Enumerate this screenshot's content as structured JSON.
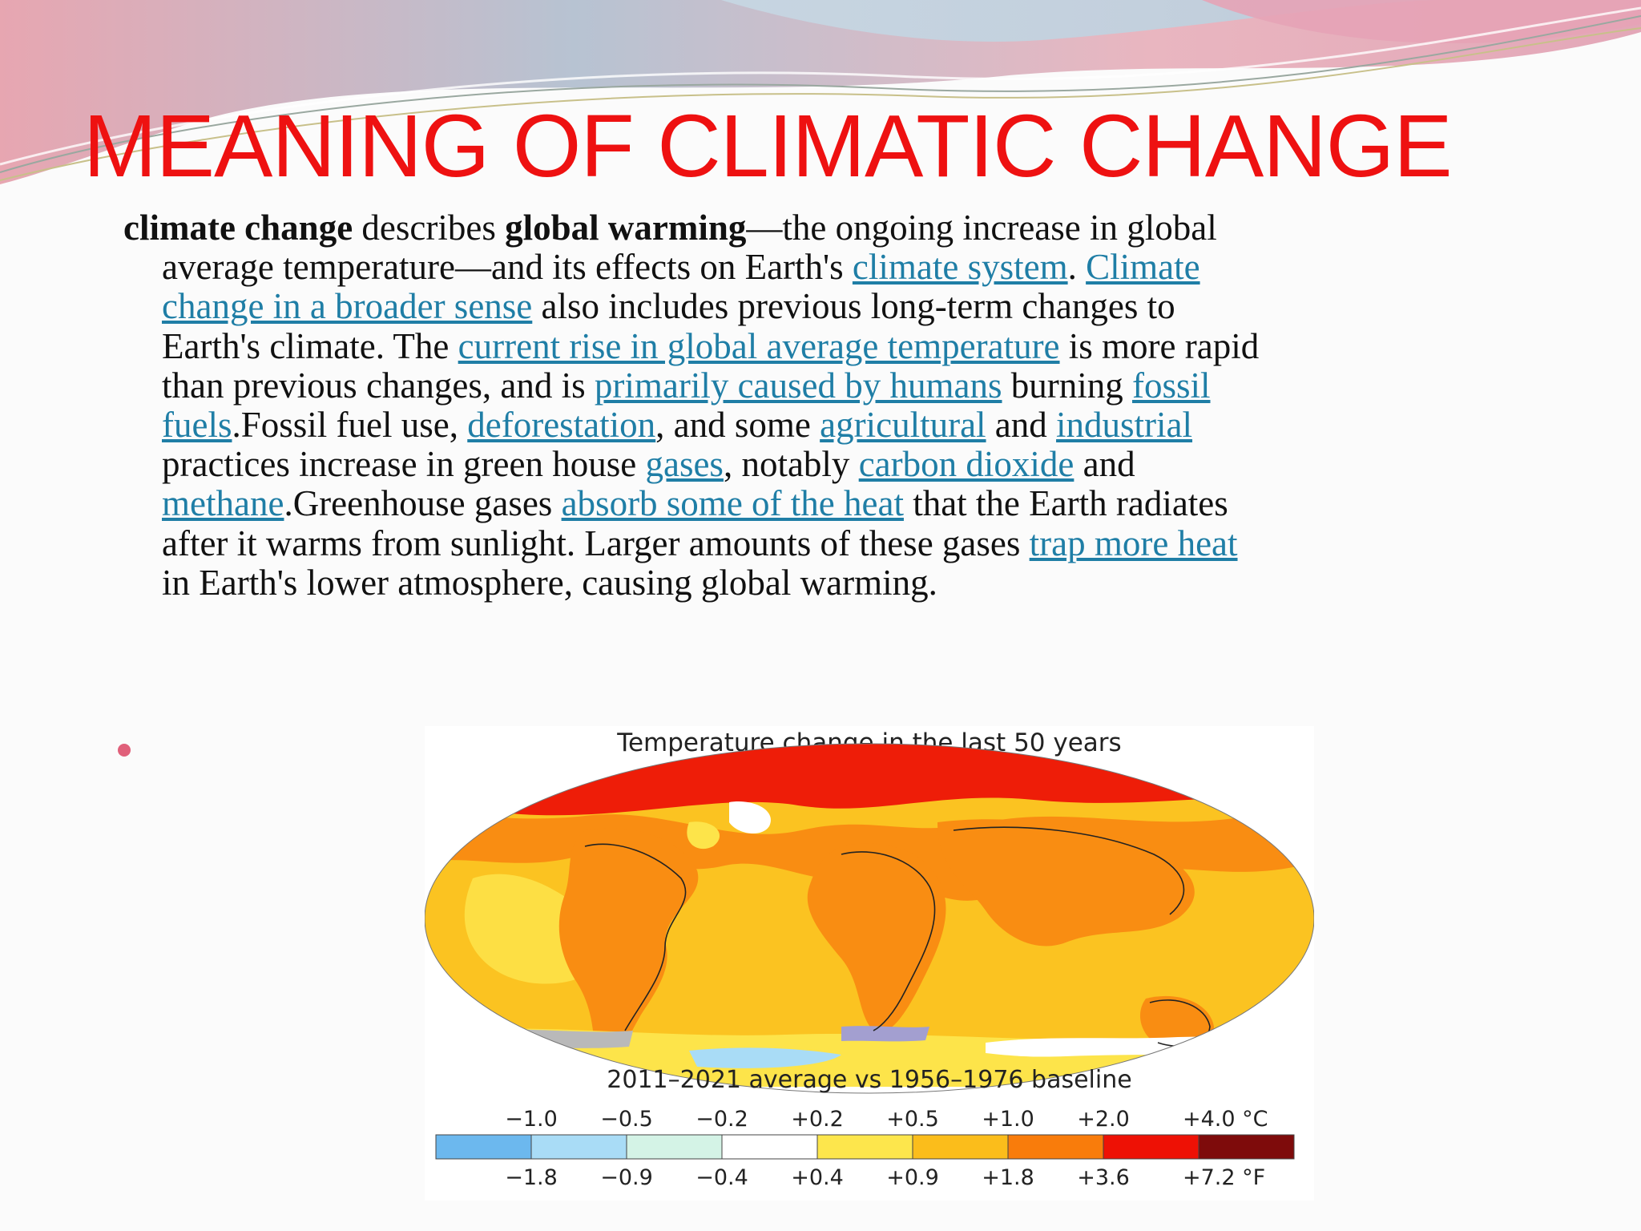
{
  "slide": {
    "title": "MEANING OF CLIMATIC CHANGE"
  },
  "paragraph": {
    "t1": "climate change",
    "t2": " describes ",
    "t3": "global warming",
    "t4": "—the ongoing increase in global average temperature—and its effects on Earth's ",
    "l1": "climate system",
    "t5": ". ",
    "l2": "Climate change in a broader sense",
    "t6": " also includes previous long-term changes to Earth's climate. The ",
    "l3": "current rise in global average temperature",
    "t7": " is more rapid than previous changes, and is ",
    "l4": "primarily caused by humans",
    "t8": " burning ",
    "l5": "fossil fuels",
    "t9": ".Fossil fuel use, ",
    "l6": "deforestation",
    "t10": ", and some ",
    "l7": "agricultural",
    "t11": " and ",
    "l8": "industrial",
    "t12": " practices increase in green house ",
    "l9": "gases",
    "t13": ", notably ",
    "l10": "carbon dioxide",
    "t14": " and ",
    "l11": "methane",
    "t15": ".Greenhouse gases ",
    "l12": "absorb some of the heat",
    "t16": " that the Earth radiates after it warms from sunlight. Larger amounts of these gases ",
    "l13": "trap more heat",
    "t17": " in Earth's lower atmosphere, causing global warming."
  },
  "figure": {
    "title": "Temperature change in the last 50 years",
    "caption": "2011–2021 average vs 1956–1976 baseline",
    "celsius_labels": [
      "−1.0",
      "−0.5",
      "−0.2",
      "+0.2",
      "+0.5",
      "+1.0",
      "+2.0",
      "+4.0 °C"
    ],
    "fahrenheit_labels": [
      "−1.8",
      "−0.9",
      "−0.4",
      "+0.4",
      "+0.9",
      "+1.8",
      "+3.6",
      "+7.2 °F"
    ],
    "scale_colors": [
      "#6cb8ee",
      "#a9dcf6",
      "#d4f3e6",
      "#ffffff",
      "#fde64c",
      "#fbbd1b",
      "#f97c0b",
      "#ee1105",
      "#7e0b0b"
    ]
  },
  "colors": {
    "title": "#ee1111",
    "link": "#1f7ea6",
    "bullet": "#e0607a"
  }
}
